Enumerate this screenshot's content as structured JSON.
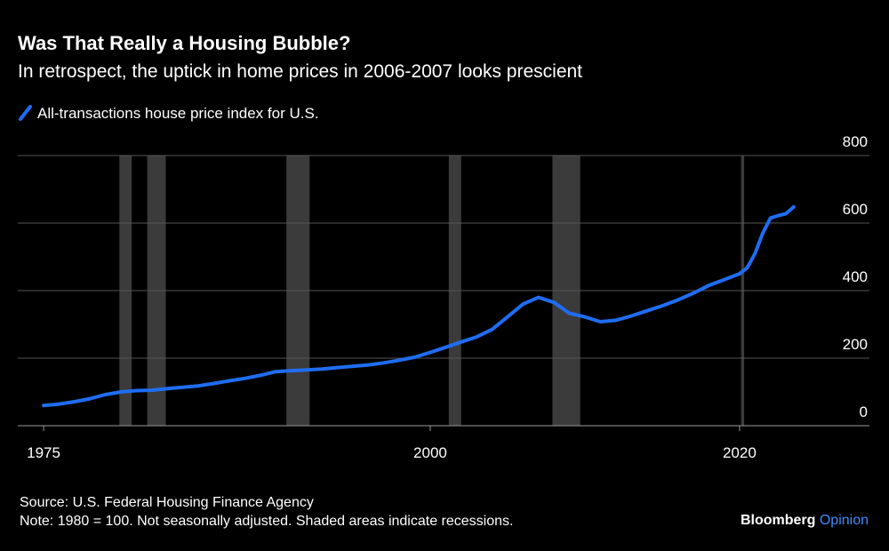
{
  "chart_data": {
    "type": "line",
    "title": "Was That Really a Housing Bubble?",
    "subtitle": "In retrospect, the uptick in home prices in 2006-2007 looks prescient",
    "x": [
      1975,
      1976,
      1977,
      1978,
      1979,
      1980,
      1981,
      1982,
      1983,
      1984,
      1985,
      1986,
      1987,
      1988,
      1989,
      1990,
      1991,
      1992,
      1993,
      1994,
      1995,
      1996,
      1997,
      1998,
      1999,
      2000,
      2001,
      2002,
      2003,
      2004,
      2005,
      2006,
      2007,
      2008,
      2009,
      2010,
      2011,
      2012,
      2013,
      2014,
      2015,
      2016,
      2017,
      2018,
      2019,
      2020,
      2020.5,
      2021,
      2021.5,
      2022,
      2022.5,
      2023,
      2023.5
    ],
    "series": [
      {
        "name": "All-transactions house price index for U.S.",
        "color": "#1f6df2",
        "values": [
          60,
          64,
          71,
          80,
          92,
          100,
          104,
          105,
          110,
          114,
          118,
          125,
          133,
          140,
          149,
          160,
          163,
          165,
          168,
          172,
          176,
          180,
          186,
          194,
          203,
          217,
          232,
          248,
          263,
          285,
          322,
          360,
          380,
          365,
          333,
          322,
          308,
          312,
          325,
          340,
          355,
          372,
          392,
          415,
          432,
          450,
          468,
          510,
          570,
          615,
          622,
          628,
          648
        ]
      }
    ],
    "xlim": [
      1973.33,
      2028.4
    ],
    "xticks": [
      1975,
      2000,
      2020
    ],
    "ylim": [
      0,
      800
    ],
    "yticks": [
      0,
      200,
      400,
      600,
      800
    ],
    "grid": true,
    "recessions": [
      [
        1979.9,
        1980.7
      ],
      [
        1981.7,
        1982.9
      ],
      [
        1990.7,
        1992.2
      ],
      [
        2001.2,
        2002.0
      ],
      [
        2007.9,
        2009.7
      ],
      [
        2020.1,
        2020.3
      ]
    ],
    "recession_color": "#3b3b3b",
    "source": "Source: U.S. Federal Housing Finance Agency",
    "note": "Note: 1980 = 100. Not seasonally adjusted. Shaded areas indicate recessions.",
    "brand": {
      "name": "Bloomberg",
      "section": "Opinion",
      "section_color": "#3d8bff"
    }
  }
}
